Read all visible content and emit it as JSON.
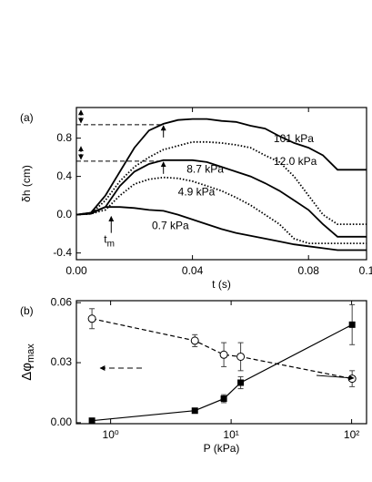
{
  "chart_data": [
    {
      "type": "line",
      "panel_label": "(a)",
      "xlabel": "t  (s)",
      "ylabel": "δh  (cm)",
      "xlim": [
        0,
        0.1
      ],
      "ylim": [
        -0.47,
        1.12
      ],
      "xticks": [
        {
          "value": 0,
          "label": "0.00"
        },
        {
          "value": 0.04,
          "label": "0.04"
        },
        {
          "value": 0.08,
          "label": "0.08"
        },
        0.1
      ],
      "yticks": [
        -0.4,
        {
          "value": 0,
          "label": "0.0"
        },
        0.4,
        0.8
      ],
      "x": [
        0,
        0.005,
        0.01,
        0.015,
        0.02,
        0.025,
        0.03,
        0.035,
        0.04,
        0.045,
        0.05,
        0.055,
        0.06,
        0.065,
        0.07,
        0.075,
        0.08,
        0.085,
        0.09,
        0.095,
        0.1
      ],
      "series": [
        {
          "name": "101 kPa",
          "color": "#000000",
          "style": "solid",
          "values": [
            0,
            0.02,
            0.2,
            0.45,
            0.7,
            0.88,
            0.95,
            0.99,
            1.0,
            1.0,
            0.98,
            0.97,
            0.93,
            0.9,
            0.82,
            0.75,
            0.7,
            0.62,
            0.47,
            0.47,
            0.47
          ]
        },
        {
          "name": "12.0 kPa",
          "color": "#000000",
          "style": "dotted",
          "values": [
            0,
            0.01,
            0.15,
            0.35,
            0.5,
            0.6,
            0.68,
            0.72,
            0.76,
            0.76,
            0.75,
            0.73,
            0.7,
            0.62,
            0.55,
            0.4,
            0.2,
            0.0,
            -0.1,
            -0.1,
            -0.1
          ]
        },
        {
          "name": "8.7 kPa",
          "color": "#000000",
          "style": "solid",
          "values": [
            0,
            0.01,
            0.08,
            0.3,
            0.45,
            0.53,
            0.57,
            0.57,
            0.57,
            0.55,
            0.5,
            0.45,
            0.4,
            0.33,
            0.25,
            0.15,
            0.05,
            -0.1,
            -0.23,
            -0.23,
            -0.23
          ]
        },
        {
          "name": "4.9 kPa",
          "color": "#000000",
          "style": "dotted",
          "values": [
            0,
            0.01,
            0.05,
            0.2,
            0.32,
            0.37,
            0.39,
            0.38,
            0.35,
            0.3,
            0.25,
            0.18,
            0.1,
            0.0,
            -0.1,
            -0.25,
            -0.3,
            -0.3,
            -0.3,
            -0.3,
            -0.3
          ]
        },
        {
          "name": "0.7 kPa",
          "color": "#000000",
          "style": "solid",
          "values": [
            0,
            0.02,
            0.08,
            0.08,
            0.07,
            0.05,
            0.04,
            0,
            -0.05,
            -0.1,
            -0.15,
            -0.19,
            -0.22,
            -0.25,
            -0.28,
            -0.31,
            -0.33,
            -0.35,
            -0.37,
            -0.37,
            -0.37
          ]
        }
      ],
      "hlines": [
        0.94,
        0.56
      ],
      "annotation": {
        "base": "t",
        "subscript": "m",
        "x": 0.012
      }
    },
    {
      "type": "scatter",
      "panel_label": "(b)",
      "xlabel": "P  (kPa)",
      "ylabel": {
        "base": "Δφ",
        "subscript": "max"
      },
      "xscale": "log",
      "xlim": [
        0.52,
        133
      ],
      "ylim": [
        -0.0005,
        0.061
      ],
      "y2lim": [
        -0.0005,
        0.061
      ],
      "xticks": [
        {
          "value": 1,
          "label": "10⁰"
        },
        {
          "value": 10,
          "label": "10¹"
        },
        {
          "value": 100,
          "label": "10²"
        }
      ],
      "yticks": [
        {
          "value": 0,
          "label": "0.00"
        },
        {
          "value": 0.03,
          "label": "0.03"
        },
        {
          "value": 0.06,
          "label": "0.06"
        }
      ],
      "x": [
        0.7,
        5,
        8.7,
        12,
        101
      ],
      "series": [
        {
          "marker": "open-circle",
          "style": "dashed",
          "color": "#000000",
          "values": [
            0.052,
            0.041,
            0.034,
            0.033,
            0.022
          ],
          "errors": [
            0.005,
            0.003,
            0.006,
            0.007,
            0.004
          ]
        },
        {
          "marker": "filled-square",
          "style": "solid",
          "color": "#000000",
          "axis": "y2",
          "values": [
            0.001,
            0.006,
            0.012,
            0.02,
            0.049
          ],
          "errors": [
            0,
            0,
            0.002,
            0.003,
            0.01
          ]
        }
      ]
    }
  ]
}
